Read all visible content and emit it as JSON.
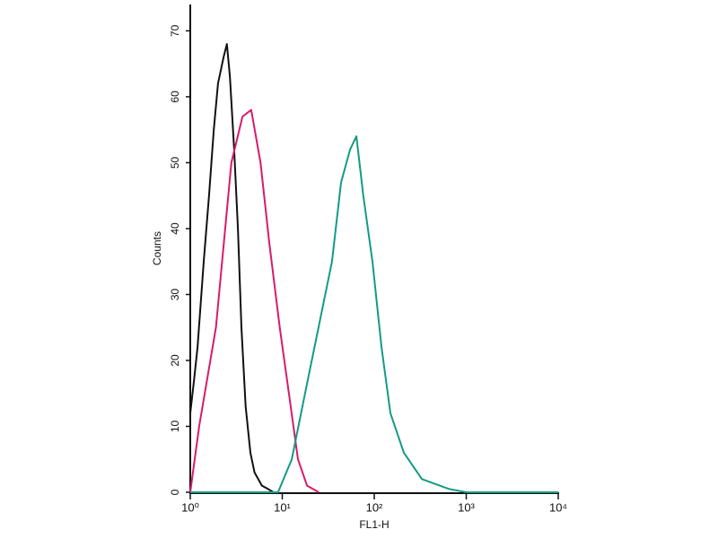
{
  "chart_data": {
    "type": "line",
    "x_scale": "log",
    "ylabel": "Counts",
    "xlabel": "FL1-H",
    "xlim": [
      1,
      10000
    ],
    "xticks": [
      {
        "value": 1,
        "label": "10⁰"
      },
      {
        "value": 10,
        "label": "10¹"
      },
      {
        "value": 100,
        "label": "10²"
      },
      {
        "value": 1000,
        "label": "10³"
      },
      {
        "value": 10000,
        "label": "10⁴"
      }
    ],
    "ylim": [
      0,
      74
    ],
    "yticks": [
      0,
      10,
      20,
      30,
      40,
      50,
      60,
      70
    ],
    "series": [
      {
        "color": "#111111",
        "x": [
          1,
          1.1,
          1.2,
          1.4,
          1.6,
          1.8,
          2,
          2.3,
          2.5,
          2.7,
          3,
          3.3,
          3.6,
          4,
          4.5,
          5,
          6,
          7,
          8
        ],
        "values": [
          12,
          17,
          22,
          35,
          45,
          55,
          62,
          66,
          68,
          63,
          52,
          40,
          25,
          13,
          6,
          3,
          1,
          0.5,
          0
        ]
      },
      {
        "color": "#d81b6a",
        "x": [
          1,
          1.25,
          1.9,
          2.8,
          3.7,
          4.6,
          5.8,
          7.2,
          9.4,
          11.8,
          14.8,
          18.6,
          25
        ],
        "values": [
          0,
          10,
          25,
          50,
          57,
          58,
          50,
          38,
          25,
          15,
          5,
          1,
          0
        ]
      },
      {
        "color": "#139a86",
        "x": [
          1,
          9,
          12.7,
          17.7,
          24.8,
          34.7,
          43.6,
          54.6,
          64,
          76,
          95.6,
          120,
          150,
          210,
          330,
          650,
          1000,
          10000
        ],
        "values": [
          0,
          0,
          5,
          15,
          25,
          35,
          47,
          52,
          54,
          45,
          35,
          22,
          12,
          6,
          2,
          0.5,
          0,
          0
        ]
      }
    ]
  }
}
